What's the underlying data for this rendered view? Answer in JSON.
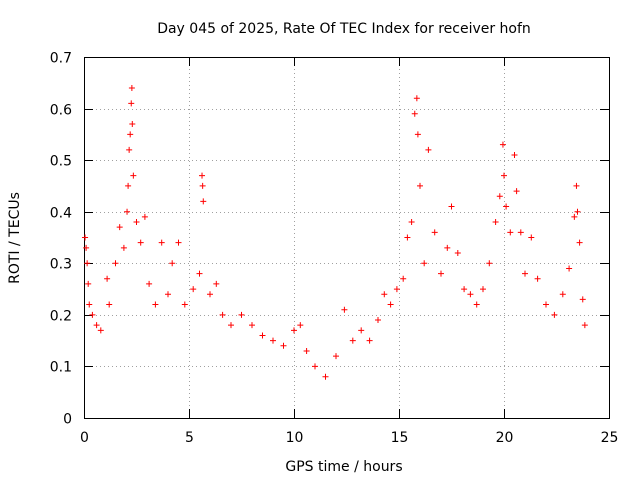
{
  "chart_data": {
    "type": "scatter",
    "title": "Day 045 of 2025, Rate Of TEC Index for receiver hofn",
    "xlabel": "GPS time / hours",
    "ylabel": "ROTI / TECUs",
    "xlim": [
      0,
      25
    ],
    "ylim": [
      0,
      0.7
    ],
    "xticks": [
      0,
      5,
      10,
      15,
      20,
      25
    ],
    "yticks": [
      0,
      0.1,
      0.2,
      0.3,
      0.4,
      0.5,
      0.6,
      0.7
    ],
    "grid": true,
    "marker": "+",
    "color": "#ff0000",
    "series": [
      {
        "name": "ROTI",
        "points": [
          [
            0.05,
            0.35
          ],
          [
            0.1,
            0.33
          ],
          [
            0.15,
            0.3
          ],
          [
            0.2,
            0.26
          ],
          [
            0.25,
            0.22
          ],
          [
            0.4,
            0.2
          ],
          [
            0.6,
            0.18
          ],
          [
            0.8,
            0.17
          ],
          [
            1.1,
            0.27
          ],
          [
            1.2,
            0.22
          ],
          [
            1.5,
            0.3
          ],
          [
            1.7,
            0.37
          ],
          [
            1.9,
            0.33
          ],
          [
            2.05,
            0.4
          ],
          [
            2.1,
            0.45
          ],
          [
            2.15,
            0.52
          ],
          [
            2.2,
            0.55
          ],
          [
            2.25,
            0.61
          ],
          [
            2.28,
            0.64
          ],
          [
            2.3,
            0.57
          ],
          [
            2.35,
            0.47
          ],
          [
            2.5,
            0.38
          ],
          [
            2.7,
            0.34
          ],
          [
            2.9,
            0.39
          ],
          [
            3.1,
            0.26
          ],
          [
            3.4,
            0.22
          ],
          [
            3.7,
            0.34
          ],
          [
            4.0,
            0.24
          ],
          [
            4.2,
            0.3
          ],
          [
            4.5,
            0.34
          ],
          [
            4.8,
            0.22
          ],
          [
            5.2,
            0.25
          ],
          [
            5.5,
            0.28
          ],
          [
            5.62,
            0.47
          ],
          [
            5.65,
            0.45
          ],
          [
            5.68,
            0.42
          ],
          [
            6.0,
            0.24
          ],
          [
            6.3,
            0.26
          ],
          [
            6.6,
            0.2
          ],
          [
            7.0,
            0.18
          ],
          [
            7.5,
            0.2
          ],
          [
            8.0,
            0.18
          ],
          [
            8.5,
            0.16
          ],
          [
            9.0,
            0.15
          ],
          [
            9.5,
            0.14
          ],
          [
            10.0,
            0.17
          ],
          [
            10.3,
            0.18
          ],
          [
            10.6,
            0.13
          ],
          [
            11.0,
            0.1
          ],
          [
            11.5,
            0.08
          ],
          [
            12.0,
            0.12
          ],
          [
            12.4,
            0.21
          ],
          [
            12.8,
            0.15
          ],
          [
            13.2,
            0.17
          ],
          [
            13.6,
            0.15
          ],
          [
            14.0,
            0.19
          ],
          [
            14.3,
            0.24
          ],
          [
            14.6,
            0.22
          ],
          [
            14.9,
            0.25
          ],
          [
            15.2,
            0.27
          ],
          [
            15.4,
            0.35
          ],
          [
            15.6,
            0.38
          ],
          [
            15.75,
            0.59
          ],
          [
            15.85,
            0.62
          ],
          [
            15.9,
            0.55
          ],
          [
            16.0,
            0.45
          ],
          [
            16.2,
            0.3
          ],
          [
            16.4,
            0.52
          ],
          [
            16.7,
            0.36
          ],
          [
            17.0,
            0.28
          ],
          [
            17.3,
            0.33
          ],
          [
            17.5,
            0.41
          ],
          [
            17.8,
            0.32
          ],
          [
            18.1,
            0.25
          ],
          [
            18.4,
            0.24
          ],
          [
            18.7,
            0.22
          ],
          [
            19.0,
            0.25
          ],
          [
            19.3,
            0.3
          ],
          [
            19.6,
            0.38
          ],
          [
            19.8,
            0.43
          ],
          [
            19.95,
            0.53
          ],
          [
            20.0,
            0.47
          ],
          [
            20.1,
            0.41
          ],
          [
            20.3,
            0.36
          ],
          [
            20.5,
            0.51
          ],
          [
            20.6,
            0.44
          ],
          [
            20.8,
            0.36
          ],
          [
            21.0,
            0.28
          ],
          [
            21.3,
            0.35
          ],
          [
            21.6,
            0.27
          ],
          [
            22.0,
            0.22
          ],
          [
            22.4,
            0.2
          ],
          [
            22.8,
            0.24
          ],
          [
            23.1,
            0.29
          ],
          [
            23.35,
            0.39
          ],
          [
            23.45,
            0.45
          ],
          [
            23.5,
            0.4
          ],
          [
            23.6,
            0.34
          ],
          [
            23.75,
            0.23
          ],
          [
            23.85,
            0.18
          ]
        ]
      }
    ]
  }
}
